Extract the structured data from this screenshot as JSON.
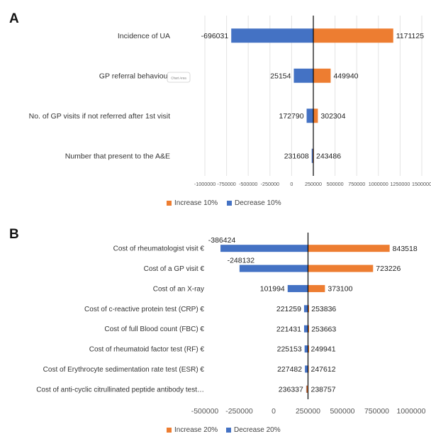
{
  "panels": [
    {
      "label": "A"
    },
    {
      "label": "B"
    }
  ],
  "tooltip": "Chart Area",
  "colors": {
    "increase": "#ED7D31",
    "decrease": "#4472C4",
    "grid": "#e3e3e3",
    "baseline": "#000000"
  },
  "chart_data": [
    {
      "type": "bar",
      "orientation": "horizontal",
      "baseline": 250000,
      "categories": [
        "Incidence of UA",
        "GP referral behaviour",
        "No. of GP visits if not referred after 1st visit",
        "Number that present to the A&E"
      ],
      "series": [
        {
          "name": "Increase 10%",
          "values": [
            1171125,
            449940,
            302304,
            243486
          ]
        },
        {
          "name": "Decrease 10%",
          "values": [
            -696031,
            25154,
            172790,
            231608
          ]
        }
      ],
      "data_labels": {
        "increase": [
          "1171125",
          "449940",
          "302304",
          "243486"
        ],
        "decrease": [
          "-696031",
          "25154",
          "172790",
          "231608"
        ]
      },
      "xlim": [
        -1000000,
        1500000
      ],
      "xticks": [
        -1000000,
        -750000,
        -500000,
        -250000,
        0,
        250000,
        500000,
        750000,
        1000000,
        1250000,
        1500000
      ],
      "xtick_labels": [
        "-1000000",
        "-750000",
        "-500000",
        "-250000",
        "0",
        "250000",
        "500000",
        "750000",
        "1000000",
        "1250000",
        "1500000"
      ],
      "grid": true,
      "legend": "bottom"
    },
    {
      "type": "bar",
      "orientation": "horizontal",
      "baseline": 250000,
      "categories": [
        "Cost of rheumatologist visit €",
        "Cost of a GP visit €",
        "Cost of an X-ray",
        "Cost of c-reactive protein test (CRP) €",
        "Cost of full Blood count (FBC) €",
        "Cost of rheumatoid factor test (RF) €",
        "Cost of Erythrocyte sedimentation rate test (ESR) €",
        "Cost of anti-cyclic citrullinated peptide antibody test…"
      ],
      "series": [
        {
          "name": "Increase 20%",
          "values": [
            843518,
            723226,
            373100,
            253836,
            253663,
            249941,
            247612,
            238757
          ]
        },
        {
          "name": "Decrease 20%",
          "values": [
            -386424,
            -248132,
            101994,
            221259,
            221431,
            225153,
            227482,
            236337
          ]
        }
      ],
      "data_labels": {
        "increase": [
          "843518",
          "723226",
          "373100",
          "253836",
          "253663",
          "249941",
          "247612",
          "238757"
        ],
        "decrease": [
          "-386424",
          "-248132",
          "101994",
          "221259",
          "221431",
          "225153",
          "227482",
          "236337"
        ]
      },
      "xlim": [
        -500000,
        1000000
      ],
      "xticks": [
        -500000,
        -250000,
        0,
        250000,
        500000,
        750000,
        1000000
      ],
      "xtick_labels": [
        "-500000",
        "-250000",
        "0",
        "250000",
        "500000",
        "750000",
        "1000000"
      ],
      "grid": false,
      "legend": "bottom"
    }
  ]
}
